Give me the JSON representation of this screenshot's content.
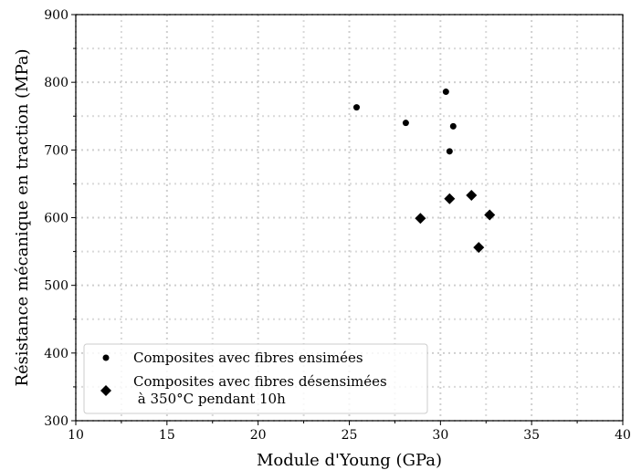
{
  "chart_data": {
    "type": "scatter",
    "xlabel": "Module d'Young (GPa)",
    "ylabel": "Résistance mécanique en traction (MPa)",
    "xlim": [
      10,
      40
    ],
    "ylim": [
      300,
      900
    ],
    "xticks": [
      10,
      15,
      20,
      25,
      30,
      35,
      40
    ],
    "yticks": [
      300,
      400,
      500,
      600,
      700,
      800,
      900
    ],
    "grid": true,
    "legend_position": "bottom-left",
    "series": [
      {
        "name": "Composites avec fibres ensimées",
        "marker": "circle",
        "color": "#000000",
        "points": [
          {
            "x": 25.4,
            "y": 763
          },
          {
            "x": 28.1,
            "y": 740
          },
          {
            "x": 30.3,
            "y": 786
          },
          {
            "x": 30.7,
            "y": 735
          },
          {
            "x": 30.5,
            "y": 698
          }
        ]
      },
      {
        "name": "Composites avec fibres désensimées",
        "name_line2": " à 350°C pendant 10h",
        "marker": "diamond",
        "color": "#000000",
        "points": [
          {
            "x": 28.9,
            "y": 599
          },
          {
            "x": 30.5,
            "y": 628
          },
          {
            "x": 31.7,
            "y": 633
          },
          {
            "x": 32.7,
            "y": 604
          },
          {
            "x": 32.1,
            "y": 556
          }
        ]
      }
    ]
  }
}
